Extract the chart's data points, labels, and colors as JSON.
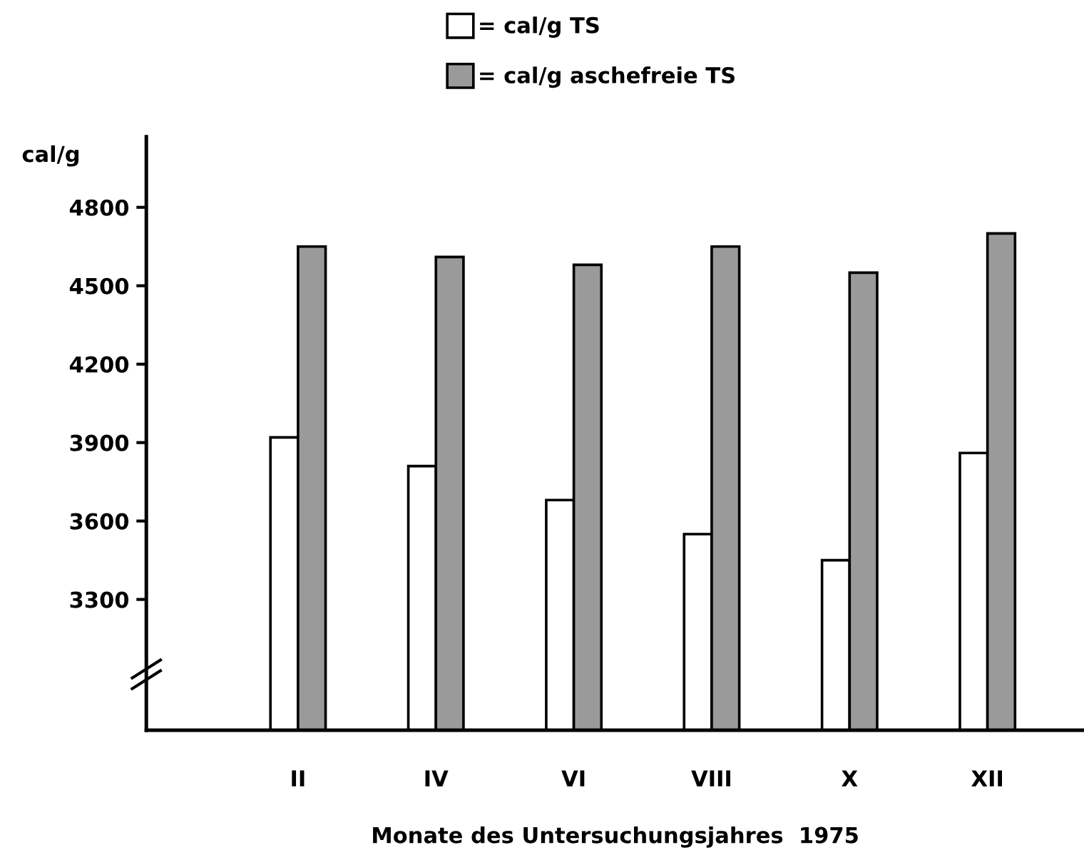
{
  "chart_data": {
    "type": "bar",
    "ylabel": "cal/g",
    "xlabel": "Monate des Untersuchungsjahres  1975",
    "categories": [
      "II",
      "IV",
      "VI",
      "VIII",
      "X",
      "XII"
    ],
    "series": [
      {
        "name": "= cal/g TS",
        "color": "#ffffff",
        "values": [
          3920,
          3810,
          3680,
          3550,
          3450,
          3860
        ]
      },
      {
        "name": "= cal/g aschefreie TS",
        "color": "#9a9a9a",
        "values": [
          4650,
          4610,
          4580,
          4650,
          4550,
          4700
        ]
      }
    ],
    "ylim": [
      2800,
      5070
    ],
    "yticks": [
      3300,
      3600,
      3900,
      4200,
      4500,
      4800
    ],
    "grid": false,
    "legend": "top"
  }
}
